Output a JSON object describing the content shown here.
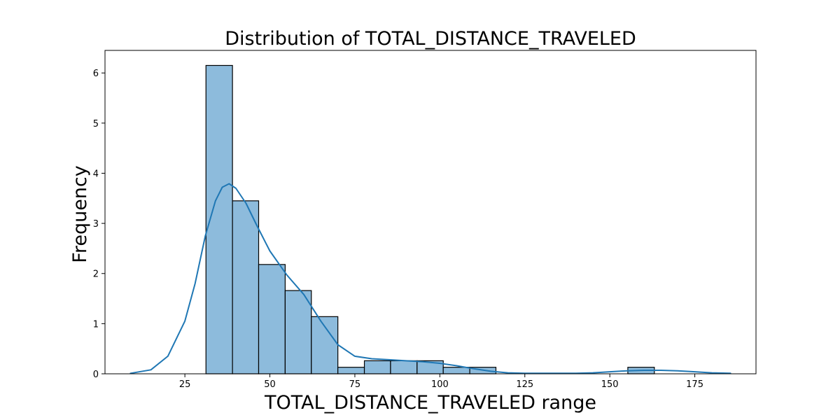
{
  "chart_data": {
    "type": "bar",
    "subtype": "histogram-with-kde",
    "title": "Distribution of TOTAL_DISTANCE_TRAVELED",
    "xlabel": "TOTAL_DISTANCE_TRAVELED range",
    "ylabel": "Frequency",
    "xlim": [
      1.5,
      193
    ],
    "ylim": [
      0,
      6.45
    ],
    "xticks": [
      25,
      50,
      75,
      100,
      125,
      150,
      175
    ],
    "yticks": [
      0,
      1,
      2,
      3,
      4,
      5,
      6
    ],
    "grid": false,
    "legend": "none",
    "colors": {
      "bar_fill": "#8dbbdc",
      "bar_edge": "#000000",
      "kde_line": "#1f77b4"
    },
    "bins": [
      {
        "start": 31.2,
        "end": 39.0,
        "value": 6.15
      },
      {
        "start": 39.0,
        "end": 46.7,
        "value": 3.45
      },
      {
        "start": 46.7,
        "end": 54.5,
        "value": 2.18
      },
      {
        "start": 54.5,
        "end": 62.2,
        "value": 1.66
      },
      {
        "start": 62.2,
        "end": 70.0,
        "value": 1.14
      },
      {
        "start": 70.0,
        "end": 77.8,
        "value": 0.13
      },
      {
        "start": 77.8,
        "end": 85.5,
        "value": 0.26
      },
      {
        "start": 85.5,
        "end": 93.3,
        "value": 0.26
      },
      {
        "start": 93.3,
        "end": 101.0,
        "value": 0.26
      },
      {
        "start": 101.0,
        "end": 108.8,
        "value": 0.13
      },
      {
        "start": 108.8,
        "end": 116.5,
        "value": 0.13
      },
      {
        "start": 116.5,
        "end": 124.3,
        "value": 0
      },
      {
        "start": 124.3,
        "end": 132.1,
        "value": 0
      },
      {
        "start": 132.1,
        "end": 139.8,
        "value": 0
      },
      {
        "start": 139.8,
        "end": 147.6,
        "value": 0
      },
      {
        "start": 147.6,
        "end": 155.3,
        "value": 0
      },
      {
        "start": 155.3,
        "end": 163.1,
        "value": 0.13
      }
    ],
    "kde": {
      "x": [
        9,
        15,
        20,
        25,
        28,
        31,
        34,
        36,
        38,
        40,
        43,
        46,
        50,
        55,
        60,
        65,
        70,
        75,
        80,
        85,
        90,
        95,
        100,
        105,
        110,
        115,
        120,
        125,
        130,
        135,
        140,
        145,
        150,
        155,
        160,
        165,
        170,
        175,
        180,
        185.5
      ],
      "y": [
        0.01,
        0.08,
        0.35,
        1.05,
        1.8,
        2.75,
        3.45,
        3.72,
        3.79,
        3.7,
        3.4,
        2.98,
        2.45,
        1.97,
        1.58,
        1.05,
        0.58,
        0.35,
        0.3,
        0.28,
        0.26,
        0.24,
        0.21,
        0.16,
        0.1,
        0.05,
        0.02,
        0.01,
        0.01,
        0.01,
        0.01,
        0.02,
        0.04,
        0.06,
        0.07,
        0.07,
        0.06,
        0.04,
        0.02,
        0.01
      ]
    }
  }
}
